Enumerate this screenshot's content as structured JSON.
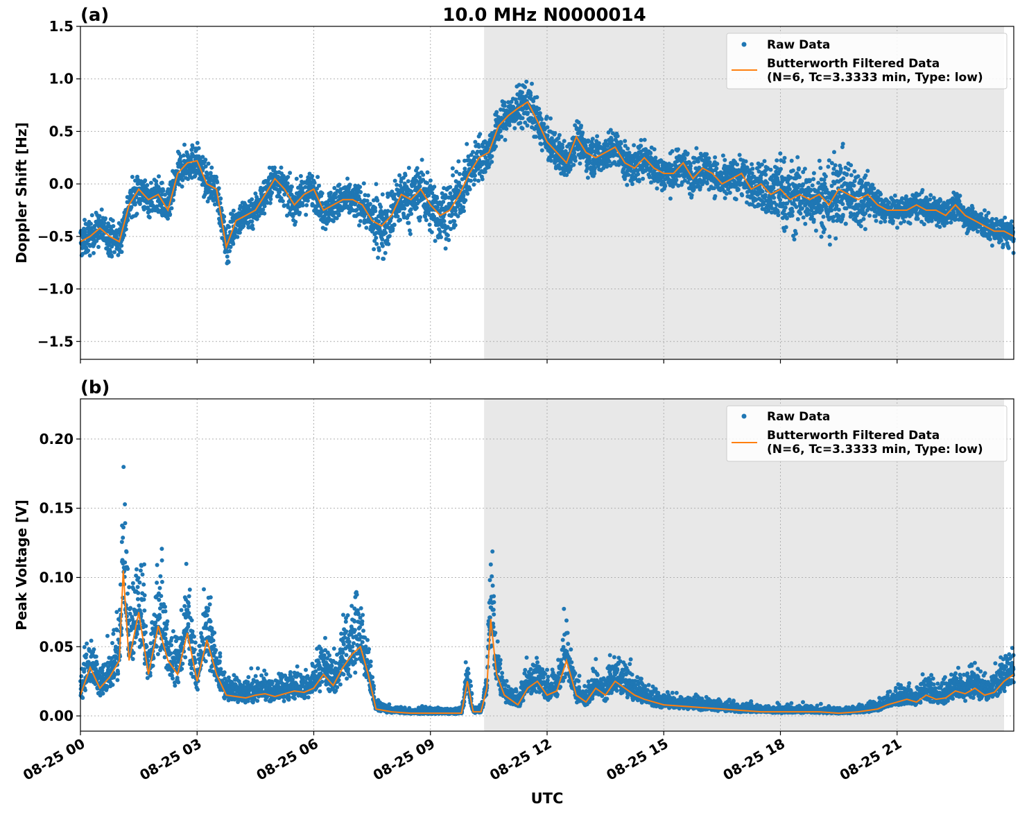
{
  "figure": {
    "title": "10.0 MHz N0000014",
    "xlabel": "UTC"
  },
  "colors": {
    "raw": "#1f77b4",
    "filtered": "#ff7f0e",
    "shade": "#e8e8e8",
    "grid": "#b0b0b0"
  },
  "legend": {
    "raw_label": "Raw Data",
    "filtered_label_line1": "Butterworth Filtered Data",
    "filtered_label_line2": "(N=6, Tc=3.3333 min, Type: low)"
  },
  "chart_data": [
    {
      "type": "scatter",
      "panel_label": "(a)",
      "ylabel": "Doppler Shift [Hz]",
      "xlim": [
        0,
        24
      ],
      "ylim": [
        -1.67,
        1.5
      ],
      "x_ticks": [
        0,
        3,
        6,
        9,
        12,
        15,
        18,
        21
      ],
      "x_tick_labels": [
        "08-25 00",
        "08-25 03",
        "08-25 06",
        "08-25 09",
        "08-25 12",
        "08-25 15",
        "08-25 18",
        "08-25 21"
      ],
      "y_ticks": [
        -1.5,
        -1.0,
        -0.5,
        0.0,
        0.5,
        1.0,
        1.5
      ],
      "y_tick_labels": [
        "−1.5",
        "−1.0",
        "−0.5",
        "0.0",
        "0.5",
        "1.0",
        "1.5"
      ],
      "shaded_region": [
        10.38,
        23.75
      ],
      "grid": true,
      "legend_position": "top-right",
      "series": [
        {
          "name": "Butterworth Filtered Data",
          "kind": "line",
          "x": [
            0,
            0.25,
            0.5,
            0.75,
            1,
            1.25,
            1.5,
            1.75,
            2,
            2.25,
            2.5,
            2.75,
            3,
            3.25,
            3.5,
            3.75,
            4,
            4.25,
            4.5,
            4.75,
            5,
            5.25,
            5.5,
            5.75,
            6,
            6.25,
            6.5,
            6.75,
            7,
            7.25,
            7.5,
            7.75,
            8,
            8.25,
            8.5,
            8.75,
            9,
            9.25,
            9.5,
            9.75,
            10,
            10.25,
            10.5,
            10.75,
            11,
            11.25,
            11.5,
            11.75,
            12,
            12.25,
            12.5,
            12.75,
            13,
            13.25,
            13.5,
            13.75,
            14,
            14.25,
            14.5,
            14.75,
            15,
            15.25,
            15.5,
            15.75,
            16,
            16.25,
            16.5,
            16.75,
            17,
            17.25,
            17.5,
            17.75,
            18,
            18.25,
            18.5,
            18.75,
            19,
            19.25,
            19.5,
            19.75,
            20,
            20.25,
            20.5,
            20.75,
            21,
            21.25,
            21.5,
            21.75,
            22,
            22.25,
            22.5,
            22.75,
            23,
            23.25,
            23.5,
            23.75,
            24
          ],
          "y": [
            -0.55,
            -0.5,
            -0.42,
            -0.5,
            -0.55,
            -0.2,
            -0.05,
            -0.15,
            -0.1,
            -0.25,
            0.1,
            0.2,
            0.22,
            0.0,
            -0.05,
            -0.6,
            -0.35,
            -0.3,
            -0.25,
            -0.1,
            0.05,
            -0.05,
            -0.2,
            -0.1,
            -0.05,
            -0.25,
            -0.2,
            -0.15,
            -0.15,
            -0.2,
            -0.35,
            -0.4,
            -0.3,
            -0.1,
            -0.15,
            -0.05,
            -0.2,
            -0.3,
            -0.25,
            -0.1,
            0.1,
            0.25,
            0.3,
            0.55,
            0.65,
            0.72,
            0.78,
            0.6,
            0.4,
            0.3,
            0.2,
            0.45,
            0.3,
            0.25,
            0.3,
            0.35,
            0.2,
            0.15,
            0.25,
            0.15,
            0.1,
            0.1,
            0.2,
            0.05,
            0.15,
            0.1,
            0.0,
            0.05,
            0.1,
            -0.05,
            0.0,
            -0.1,
            -0.05,
            -0.15,
            -0.1,
            -0.15,
            -0.1,
            -0.2,
            -0.05,
            -0.1,
            -0.15,
            -0.1,
            -0.2,
            -0.25,
            -0.25,
            -0.25,
            -0.2,
            -0.25,
            -0.25,
            -0.3,
            -0.2,
            -0.3,
            -0.35,
            -0.4,
            -0.45,
            -0.45,
            -0.5
          ]
        },
        {
          "name": "Raw Data",
          "kind": "scatter",
          "spread": [
            0.28,
            0.28,
            0.28,
            0.28,
            0.28,
            0.28,
            0.28,
            0.28,
            0.28,
            0.28,
            0.28,
            0.28,
            0.28,
            0.28,
            0.28,
            0.3,
            0.28,
            0.28,
            0.28,
            0.28,
            0.28,
            0.28,
            0.28,
            0.28,
            0.28,
            0.28,
            0.28,
            0.28,
            0.28,
            0.28,
            0.45,
            0.5,
            0.45,
            0.45,
            0.45,
            0.45,
            0.45,
            0.45,
            0.45,
            0.4,
            0.35,
            0.35,
            0.3,
            0.3,
            0.3,
            0.35,
            0.35,
            0.3,
            0.3,
            0.3,
            0.3,
            0.3,
            0.3,
            0.3,
            0.3,
            0.3,
            0.3,
            0.3,
            0.3,
            0.3,
            0.3,
            0.3,
            0.3,
            0.3,
            0.3,
            0.3,
            0.3,
            0.3,
            0.35,
            0.35,
            0.45,
            0.55,
            0.6,
            0.55,
            0.5,
            0.5,
            0.55,
            0.6,
            0.55,
            0.5,
            0.45,
            0.3,
            0.22,
            0.22,
            0.22,
            0.22,
            0.22,
            0.22,
            0.22,
            0.22,
            0.22,
            0.22,
            0.22,
            0.22,
            0.22,
            0.22,
            0.22
          ]
        }
      ]
    },
    {
      "type": "scatter",
      "panel_label": "(b)",
      "ylabel": "Peak Voltage [V]",
      "xlim": [
        0,
        24
      ],
      "ylim": [
        -0.011,
        0.229
      ],
      "x_ticks": [
        0,
        3,
        6,
        9,
        12,
        15,
        18,
        21
      ],
      "x_tick_labels": [
        "08-25 00",
        "08-25 03",
        "08-25 06",
        "08-25 09",
        "08-25 12",
        "08-25 15",
        "08-25 18",
        "08-25 21"
      ],
      "y_ticks": [
        0.0,
        0.05,
        0.1,
        0.15,
        0.2
      ],
      "y_tick_labels": [
        "0.00",
        "0.05",
        "0.10",
        "0.15",
        "0.20"
      ],
      "shaded_region": [
        10.38,
        23.75
      ],
      "grid": true,
      "legend_position": "top-right",
      "series": [
        {
          "name": "Butterworth Filtered Data",
          "kind": "line",
          "x": [
            0,
            0.25,
            0.5,
            0.75,
            1,
            1.1,
            1.25,
            1.5,
            1.75,
            2,
            2.25,
            2.5,
            2.75,
            3,
            3.25,
            3.5,
            3.75,
            4,
            4.25,
            4.5,
            4.75,
            5,
            5.25,
            5.5,
            5.75,
            6,
            6.25,
            6.5,
            6.75,
            7,
            7.2,
            7.4,
            7.6,
            8,
            8.5,
            9,
            9.5,
            9.8,
            9.95,
            10.1,
            10.3,
            10.45,
            10.55,
            10.7,
            10.9,
            11.25,
            11.5,
            11.75,
            12,
            12.25,
            12.5,
            12.75,
            13,
            13.25,
            13.5,
            13.75,
            14,
            14.25,
            14.5,
            14.75,
            15,
            15.5,
            16,
            16.5,
            17,
            17.5,
            18,
            18.5,
            19,
            19.5,
            20,
            20.5,
            20.75,
            21,
            21.25,
            21.5,
            21.75,
            22,
            22.25,
            22.5,
            22.75,
            23,
            23.25,
            23.5,
            23.75,
            24
          ],
          "y": [
            0.015,
            0.035,
            0.02,
            0.028,
            0.04,
            0.105,
            0.04,
            0.075,
            0.03,
            0.065,
            0.04,
            0.03,
            0.06,
            0.025,
            0.055,
            0.03,
            0.015,
            0.014,
            0.013,
            0.015,
            0.016,
            0.014,
            0.016,
            0.018,
            0.017,
            0.02,
            0.03,
            0.022,
            0.035,
            0.045,
            0.05,
            0.03,
            0.005,
            0.003,
            0.002,
            0.002,
            0.002,
            0.002,
            0.025,
            0.003,
            0.003,
            0.02,
            0.07,
            0.03,
            0.015,
            0.008,
            0.02,
            0.025,
            0.015,
            0.018,
            0.04,
            0.015,
            0.01,
            0.02,
            0.015,
            0.025,
            0.02,
            0.015,
            0.012,
            0.01,
            0.008,
            0.007,
            0.006,
            0.005,
            0.004,
            0.003,
            0.003,
            0.003,
            0.003,
            0.002,
            0.003,
            0.005,
            0.008,
            0.01,
            0.012,
            0.01,
            0.015,
            0.012,
            0.013,
            0.018,
            0.016,
            0.02,
            0.015,
            0.017,
            0.025,
            0.03
          ]
        },
        {
          "name": "Raw Data",
          "kind": "scatter",
          "spread_factor": 1.0
        }
      ]
    }
  ]
}
